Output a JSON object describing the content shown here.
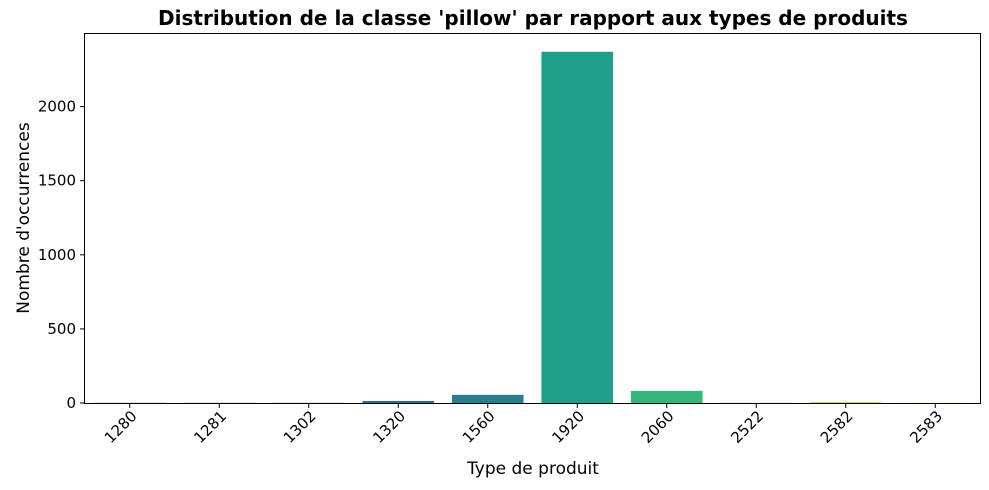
{
  "chart_data": {
    "type": "bar",
    "title": "Distribution de la classe 'pillow' par rapport aux types de produits",
    "xlabel": "Type de produit",
    "ylabel": "Nombre d'occurrences",
    "categories": [
      "1280",
      "1281",
      "1302",
      "1320",
      "1560",
      "1920",
      "2060",
      "2522",
      "2582",
      "2583"
    ],
    "values": [
      1,
      1,
      1,
      14,
      55,
      2370,
      82,
      1,
      5,
      1
    ],
    "colors": [
      "#482576",
      "#3e4a89",
      "#365c8d",
      "#2f6c8e",
      "#277f8e",
      "#1f9e89",
      "#35b779",
      "#5ec962",
      "#9fda3a",
      "#e4e419"
    ],
    "ylim": [
      0,
      2490
    ],
    "yticks": [
      0,
      500,
      1000,
      1500,
      2000
    ],
    "grid": false,
    "legend": "none"
  }
}
